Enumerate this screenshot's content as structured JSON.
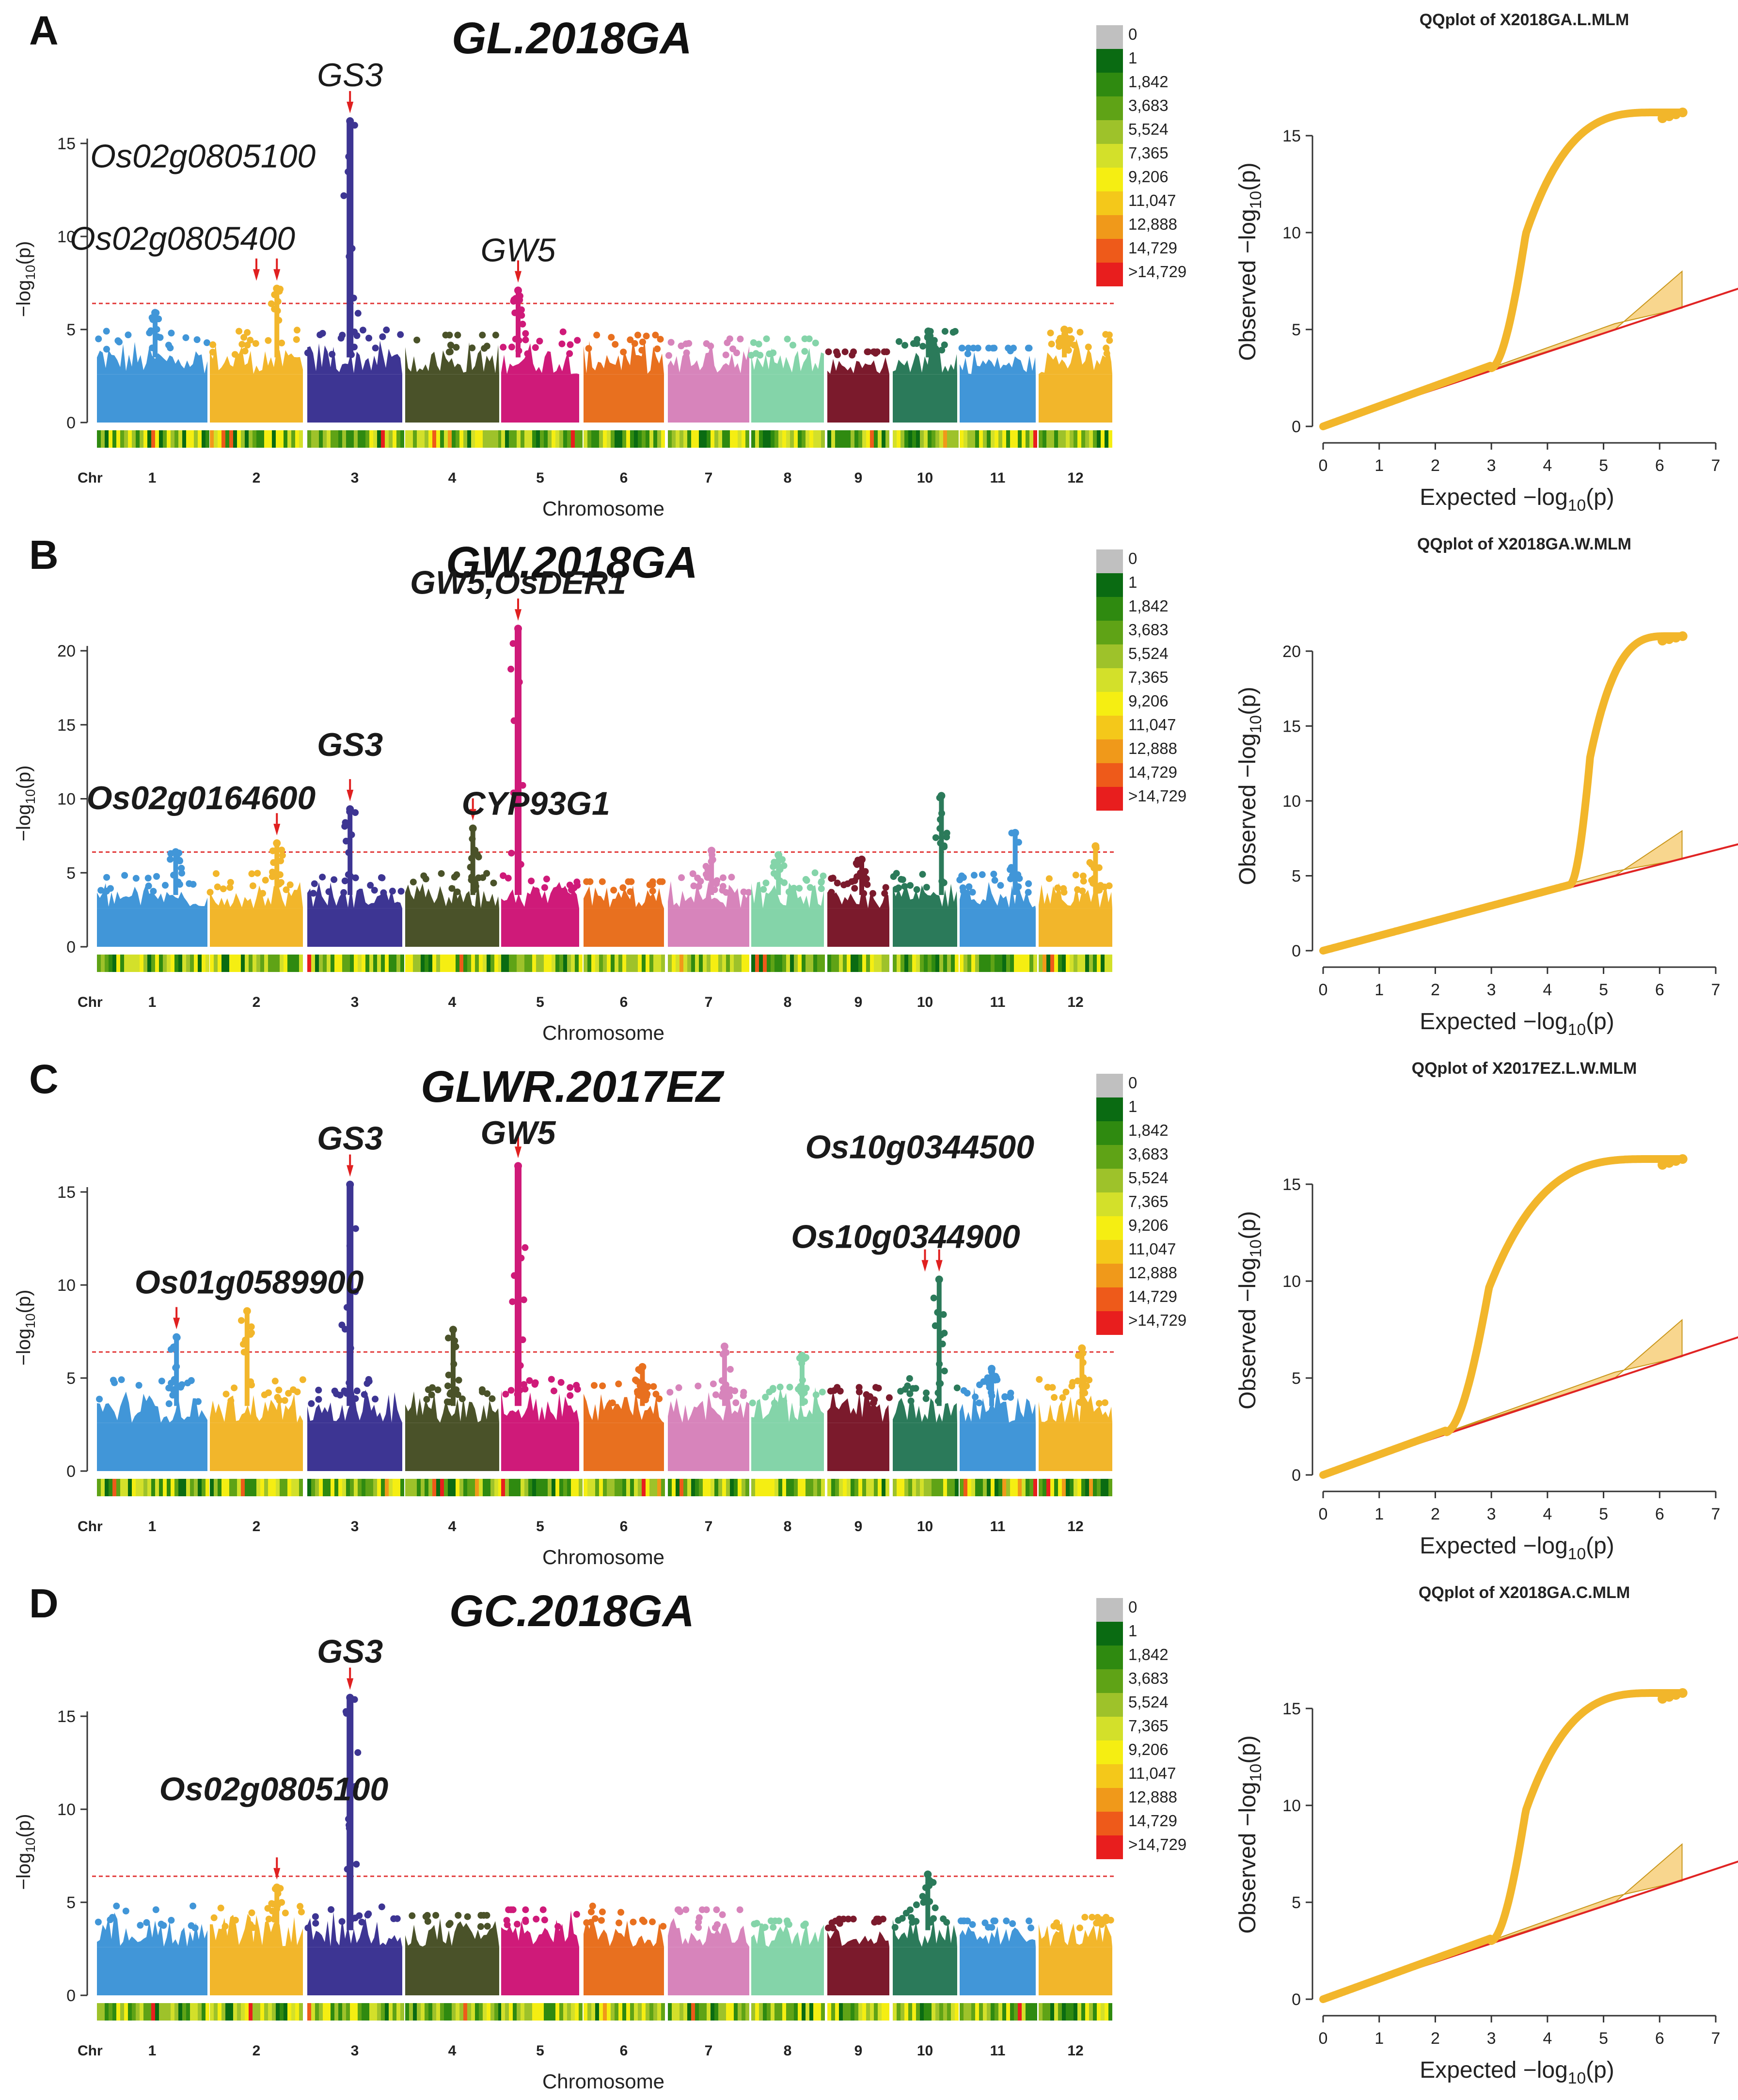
{
  "figure": {
    "chromosomes": [
      "1",
      "2",
      "3",
      "4",
      "5",
      "6",
      "7",
      "8",
      "9",
      "10",
      "11",
      "12"
    ],
    "chr_colors": [
      "#4196d8",
      "#f2b62b",
      "#3d3593",
      "#4a5229",
      "#cf1a79",
      "#e8701f",
      "#d784bb",
      "#84d4a9",
      "#7b1a2c",
      "#2b7a5a",
      "#4196d8",
      "#f2b62b"
    ],
    "chr_label": "Chr",
    "xlabel": "Chromosome",
    "threshold": 6.4,
    "density_legend": {
      "labels": [
        "0",
        "1",
        "1,842",
        "3,683",
        "5,524",
        "7,365",
        "9,206",
        "11,047",
        "12,888",
        "14,729",
        ">14,729"
      ],
      "colors": [
        "#c0c0c0",
        "#0a6b12",
        "#2f8a10",
        "#5fa316",
        "#9ec22a",
        "#d3e02a",
        "#f5ee12",
        "#f4c81a",
        "#f0991a",
        "#ee5a1a",
        "#e81e1e"
      ]
    },
    "qq_ylabel": "Observed −log",
    "qq_xlabel": "Expected −log",
    "log_sub": "10",
    "p_text": "(p)",
    "man_ylabel": "−log",
    "qq_xticks": [
      0,
      1,
      2,
      3,
      4,
      5,
      6,
      7
    ]
  },
  "chart_data": [
    {
      "type": "scatter",
      "subtype": "manhattan",
      "panel": "A",
      "title": "GL.2018GA",
      "ylim": [
        0,
        17.5
      ],
      "yticks": [
        0,
        5,
        10,
        15
      ],
      "chr_peaks": [
        5.9,
        7.2,
        16.2,
        4.7,
        7.1,
        4.7,
        4.5,
        4.5,
        3.8,
        4.9,
        4.0,
        5.0
      ],
      "annotations": [
        {
          "text": "GS3",
          "chr": 3,
          "value": 16.2
        },
        {
          "text": "Os02g0805100",
          "chr": 2,
          "value": 7.2
        },
        {
          "text": "Os02g0805400",
          "chr": 2,
          "value": 7.2
        },
        {
          "text": "GW5",
          "chr": 5,
          "value": 7.1
        }
      ],
      "density_legend": true,
      "qq": {
        "title": "QQplot of X2018GA.L.MLM",
        "ylim": [
          0,
          17
        ],
        "yticks": [
          0,
          5,
          10,
          15
        ],
        "max_expected": 6.4,
        "max_observed": 16.2,
        "takeoff": 3.0
      }
    },
    {
      "type": "scatter",
      "subtype": "manhattan",
      "panel": "B",
      "title": "GW.2018GA",
      "ylim": [
        0,
        22
      ],
      "yticks": [
        0,
        5,
        10,
        15,
        20
      ],
      "chr_peaks": [
        6.4,
        7.0,
        9.3,
        8.0,
        21.5,
        4.4,
        6.5,
        6.2,
        5.9,
        10.2,
        7.7,
        6.8
      ],
      "annotations": [
        {
          "text": "GW5,OsDER1",
          "chr": 5,
          "value": 21.5
        },
        {
          "text": "GS3",
          "chr": 3,
          "value": 9.3
        },
        {
          "text": "Os02g0164600",
          "chr": 2,
          "value": 7.0
        },
        {
          "text": "CYP93G1",
          "chr": 4,
          "value": 8.0
        }
      ],
      "density_legend": true,
      "qq": {
        "title": "QQplot of X2018GA.W.MLM",
        "ylim": [
          0,
          22
        ],
        "yticks": [
          0,
          5,
          10,
          15,
          20
        ],
        "max_expected": 6.4,
        "max_observed": 21.0,
        "takeoff": 4.4
      }
    },
    {
      "type": "scatter",
      "subtype": "manhattan",
      "panel": "C",
      "title": "GLWR.2017EZ",
      "ylim": [
        0,
        17.5
      ],
      "yticks": [
        0,
        5,
        10,
        15
      ],
      "chr_peaks": [
        7.2,
        8.6,
        15.4,
        7.6,
        16.4,
        5.6,
        6.7,
        6.2,
        4.5,
        10.3,
        5.5,
        6.6
      ],
      "annotations": [
        {
          "text": "GS3",
          "chr": 3,
          "value": 15.4
        },
        {
          "text": "GW5",
          "chr": 5,
          "value": 16.4
        },
        {
          "text": "Os10g0344500",
          "chr": 10,
          "value": 10.3
        },
        {
          "text": "Os10g0344900",
          "chr": 10,
          "value": 10.3
        },
        {
          "text": "Os01g0589900",
          "chr": 1,
          "value": 7.2
        }
      ],
      "density_legend": true,
      "qq": {
        "title": "QQplot of X2017EZ.L.W.MLM",
        "ylim": [
          0,
          17
        ],
        "yticks": [
          0,
          5,
          10,
          15
        ],
        "max_expected": 6.4,
        "max_observed": 16.3,
        "takeoff": 2.2
      }
    },
    {
      "type": "scatter",
      "subtype": "manhattan",
      "panel": "D",
      "title": "GC.2018GA",
      "ylim": [
        0,
        17.5
      ],
      "yticks": [
        0,
        5,
        10,
        15
      ],
      "chr_peaks": [
        4.8,
        5.8,
        16.0,
        4.3,
        4.6,
        4.8,
        4.6,
        4.0,
        4.1,
        6.5,
        4.0,
        4.2
      ],
      "annotations": [
        {
          "text": "GS3",
          "chr": 3,
          "value": 16.0
        },
        {
          "text": "Os02g0805100",
          "chr": 2,
          "value": 5.8
        }
      ],
      "density_legend": true,
      "qq": {
        "title": "QQplot of X2018GA.C.MLM",
        "ylim": [
          0,
          17
        ],
        "yticks": [
          0,
          5,
          10,
          15
        ],
        "max_expected": 6.4,
        "max_observed": 15.8,
        "takeoff": 3.0
      }
    }
  ]
}
